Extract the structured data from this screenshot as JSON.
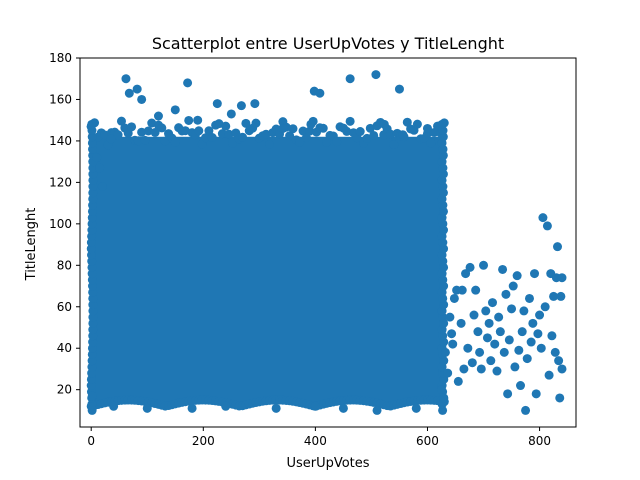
{
  "chart_data": {
    "type": "scatter",
    "title": "Scatterplot entre UserUpVotes y TitleLenght",
    "xlabel": "UserUpVotes",
    "ylabel": "TitleLenght",
    "xlim": [
      -20,
      865
    ],
    "ylim": [
      2,
      180
    ],
    "xticks": [
      0,
      200,
      400,
      600,
      800
    ],
    "yticks": [
      20,
      40,
      60,
      80,
      100,
      120,
      140,
      160,
      180
    ],
    "grid": false,
    "marker_color": "#1f77b4",
    "dense_region": {
      "x_range": [
        0,
        630
      ],
      "y_range": [
        10,
        150
      ],
      "note": "Points form a nearly solid block over this range"
    },
    "points": [
      {
        "x": 0,
        "y": 147
      },
      {
        "x": 10,
        "y": 132
      },
      {
        "x": 15,
        "y": 127
      },
      {
        "x": 20,
        "y": 118
      },
      {
        "x": 35,
        "y": 141
      },
      {
        "x": 62,
        "y": 170
      },
      {
        "x": 68,
        "y": 163
      },
      {
        "x": 82,
        "y": 165
      },
      {
        "x": 90,
        "y": 160
      },
      {
        "x": 120,
        "y": 152
      },
      {
        "x": 150,
        "y": 155
      },
      {
        "x": 172,
        "y": 168
      },
      {
        "x": 190,
        "y": 150
      },
      {
        "x": 225,
        "y": 158
      },
      {
        "x": 250,
        "y": 153
      },
      {
        "x": 268,
        "y": 157
      },
      {
        "x": 292,
        "y": 158
      },
      {
        "x": 342,
        "y": 146
      },
      {
        "x": 392,
        "y": 148
      },
      {
        "x": 398,
        "y": 164
      },
      {
        "x": 408,
        "y": 163
      },
      {
        "x": 462,
        "y": 170
      },
      {
        "x": 508,
        "y": 172
      },
      {
        "x": 523,
        "y": 148
      },
      {
        "x": 550,
        "y": 165
      },
      {
        "x": 556,
        "y": 143
      },
      {
        "x": 600,
        "y": 146
      },
      {
        "x": 2,
        "y": 17
      },
      {
        "x": 40,
        "y": 12
      },
      {
        "x": 100,
        "y": 11
      },
      {
        "x": 180,
        "y": 11
      },
      {
        "x": 240,
        "y": 12
      },
      {
        "x": 330,
        "y": 11
      },
      {
        "x": 400,
        "y": 12
      },
      {
        "x": 450,
        "y": 11
      },
      {
        "x": 510,
        "y": 10
      },
      {
        "x": 580,
        "y": 11
      },
      {
        "x": 625,
        "y": 20
      },
      {
        "x": 632,
        "y": 38
      },
      {
        "x": 636,
        "y": 28
      },
      {
        "x": 640,
        "y": 55
      },
      {
        "x": 643,
        "y": 47
      },
      {
        "x": 645,
        "y": 42
      },
      {
        "x": 648,
        "y": 64
      },
      {
        "x": 652,
        "y": 68
      },
      {
        "x": 655,
        "y": 24
      },
      {
        "x": 660,
        "y": 52
      },
      {
        "x": 662,
        "y": 68
      },
      {
        "x": 665,
        "y": 30
      },
      {
        "x": 668,
        "y": 76
      },
      {
        "x": 672,
        "y": 40
      },
      {
        "x": 676,
        "y": 79
      },
      {
        "x": 680,
        "y": 33
      },
      {
        "x": 683,
        "y": 56
      },
      {
        "x": 686,
        "y": 68
      },
      {
        "x": 690,
        "y": 48
      },
      {
        "x": 693,
        "y": 38
      },
      {
        "x": 696,
        "y": 30
      },
      {
        "x": 700,
        "y": 80
      },
      {
        "x": 704,
        "y": 58
      },
      {
        "x": 707,
        "y": 45
      },
      {
        "x": 710,
        "y": 52
      },
      {
        "x": 713,
        "y": 34
      },
      {
        "x": 716,
        "y": 62
      },
      {
        "x": 720,
        "y": 42
      },
      {
        "x": 724,
        "y": 29
      },
      {
        "x": 727,
        "y": 55
      },
      {
        "x": 730,
        "y": 48
      },
      {
        "x": 734,
        "y": 78
      },
      {
        "x": 737,
        "y": 38
      },
      {
        "x": 740,
        "y": 66
      },
      {
        "x": 743,
        "y": 18
      },
      {
        "x": 746,
        "y": 44
      },
      {
        "x": 750,
        "y": 59
      },
      {
        "x": 753,
        "y": 70
      },
      {
        "x": 756,
        "y": 31
      },
      {
        "x": 760,
        "y": 75
      },
      {
        "x": 763,
        "y": 39
      },
      {
        "x": 766,
        "y": 22
      },
      {
        "x": 769,
        "y": 48
      },
      {
        "x": 772,
        "y": 58
      },
      {
        "x": 775,
        "y": 10
      },
      {
        "x": 778,
        "y": 35
      },
      {
        "x": 782,
        "y": 64
      },
      {
        "x": 785,
        "y": 43
      },
      {
        "x": 788,
        "y": 52
      },
      {
        "x": 791,
        "y": 76
      },
      {
        "x": 794,
        "y": 18
      },
      {
        "x": 797,
        "y": 47
      },
      {
        "x": 800,
        "y": 56
      },
      {
        "x": 803,
        "y": 40
      },
      {
        "x": 806,
        "y": 103
      },
      {
        "x": 810,
        "y": 60
      },
      {
        "x": 814,
        "y": 99
      },
      {
        "x": 817,
        "y": 27
      },
      {
        "x": 820,
        "y": 76
      },
      {
        "x": 822,
        "y": 46
      },
      {
        "x": 825,
        "y": 65
      },
      {
        "x": 828,
        "y": 38
      },
      {
        "x": 830,
        "y": 74
      },
      {
        "x": 832,
        "y": 89
      },
      {
        "x": 834,
        "y": 34
      },
      {
        "x": 836,
        "y": 16
      },
      {
        "x": 838,
        "y": 65
      },
      {
        "x": 840,
        "y": 30
      },
      {
        "x": 840,
        "y": 74
      }
    ]
  }
}
